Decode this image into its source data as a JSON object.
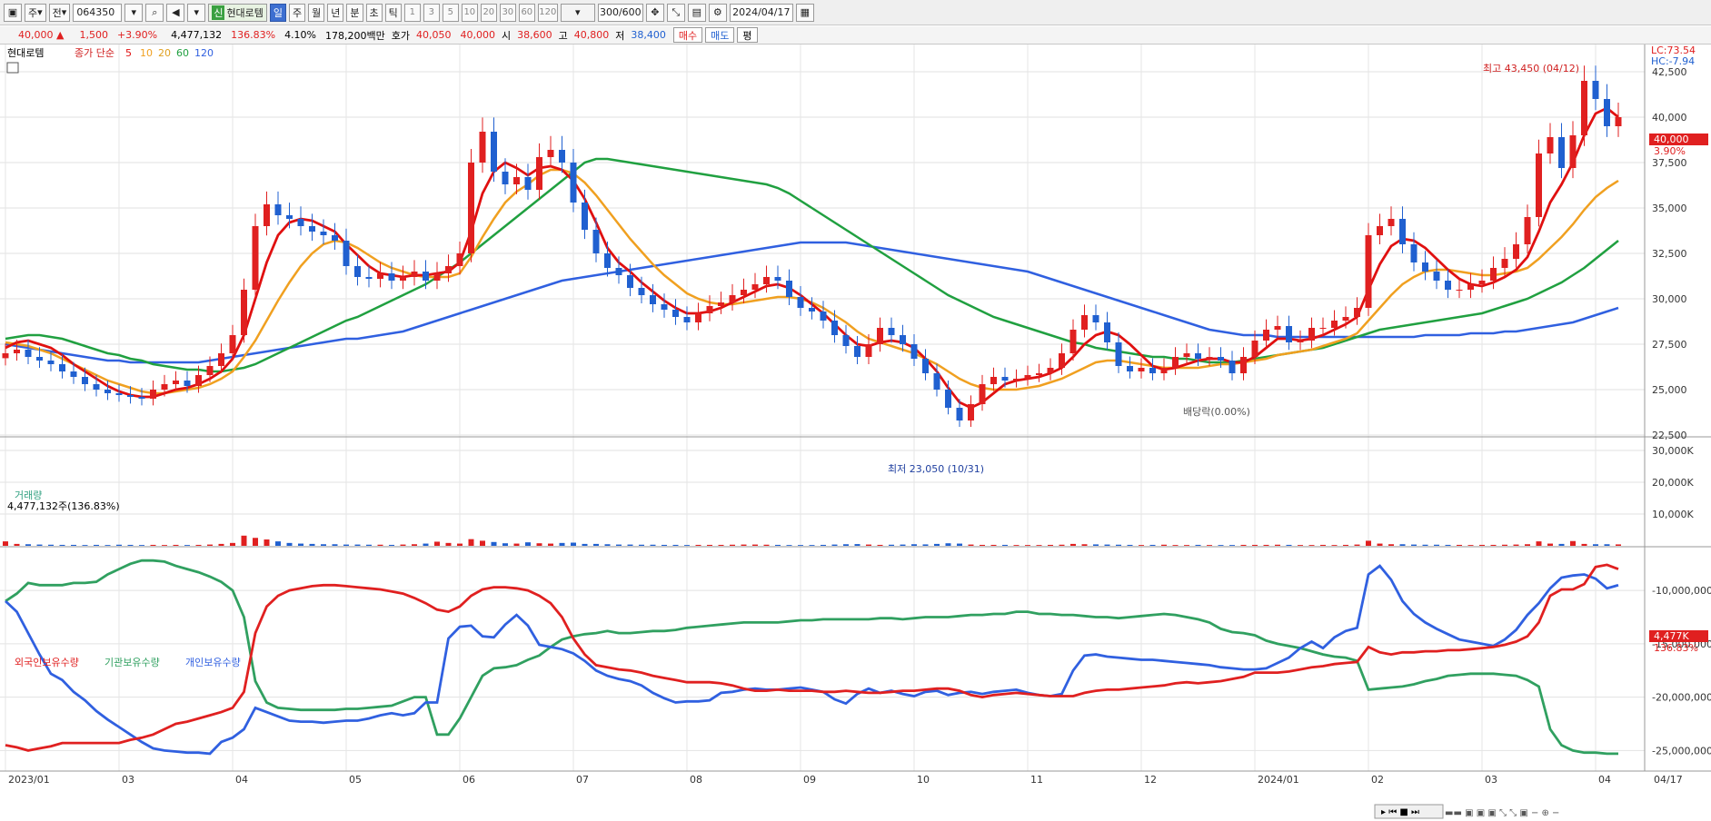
{
  "toolbar": {
    "period": "주",
    "market": "전",
    "code": "064350",
    "badge": "신",
    "name": "현대로템",
    "tabs": [
      "일",
      "주",
      "월",
      "년",
      "분",
      "초",
      "틱"
    ],
    "nums": [
      "1",
      "3",
      "5",
      "10",
      "20",
      "30",
      "60",
      "120"
    ],
    "count": "300/600",
    "date": "2024/04/17"
  },
  "info": {
    "price": "40,000 ▲",
    "chg": "1,500",
    "pct": "+3.90%",
    "vol": "4,477,132",
    "volpct": "136.83%",
    "turn": "4.10%",
    "amount": "178,200백만",
    "bid_label": "호가",
    "bid1": "40,050",
    "bid2": "40,000",
    "open_label": "시",
    "open": "38,600",
    "high_label": "고",
    "high": "40,800",
    "low_label": "저",
    "low": "38,400",
    "buy": "매수",
    "sell": "매도",
    "eval": "평"
  },
  "legend": {
    "stock": "현대로템",
    "type": "종가 단순",
    "ma": [
      "5",
      "10",
      "20",
      "60",
      "120"
    ],
    "colors": {
      "price_up": "#e02020",
      "price_down": "#2060d0",
      "ma5": "#e01010",
      "ma10": "#f0a020",
      "ma20": "#f0a020",
      "ma60": "#20a040",
      "ma120": "#3060e0"
    }
  },
  "annot": {
    "lc": "LC:73.54",
    "hc": "HC:-7.94",
    "high": "최고 43,450 (04/12)",
    "low": "최저 23,050 (10/31)",
    "div": "배당락(0.00%)",
    "last": "40,000",
    "lastpct": "3.90%"
  },
  "vol_panel": {
    "title": "거래량",
    "value": "4,477,132주(136.83%)",
    "last": "4,477K",
    "lastpct": "136.83%",
    "ticks": [
      "30,000K",
      "20,000K",
      "10,000K"
    ]
  },
  "hold_panel": {
    "labels": [
      "외국인보유수량",
      "기관보유수량",
      "개인보유수량"
    ],
    "colors": [
      "#e02020",
      "#30a060",
      "#3060e0"
    ],
    "ticks": [
      "-10,000,000",
      "-15,000,000",
      "-20,000,000",
      "-25,000,000"
    ]
  },
  "chart_data": {
    "type": "candlestick",
    "ylim": [
      22500,
      44000
    ],
    "yticks": [
      "42,500",
      "40,000",
      "37,500",
      "35,000",
      "32,500",
      "30,000",
      "27,500",
      "25,000",
      "22,500"
    ],
    "months": [
      "2023/01",
      "03",
      "04",
      "05",
      "06",
      "07",
      "08",
      "09",
      "10",
      "11",
      "12",
      "2024/01",
      "02",
      "03",
      "04",
      "04/17"
    ],
    "close": [
      27000,
      27200,
      26800,
      26600,
      26400,
      26000,
      25700,
      25300,
      25000,
      24800,
      24700,
      24600,
      24500,
      25000,
      25300,
      25500,
      25200,
      25800,
      26300,
      27000,
      28000,
      30500,
      34000,
      35200,
      34600,
      34400,
      34000,
      33700,
      33500,
      33200,
      31800,
      31200,
      31100,
      31400,
      31000,
      31200,
      31500,
      31000,
      31400,
      31800,
      32500,
      37500,
      39200,
      37000,
      36300,
      36700,
      36000,
      37800,
      38200,
      37500,
      35300,
      33800,
      32500,
      31700,
      31300,
      30600,
      30200,
      29700,
      29400,
      29000,
      28700,
      29200,
      29600,
      29800,
      30200,
      30500,
      30800,
      31200,
      31000,
      30100,
      29500,
      29300,
      28800,
      28000,
      27400,
      26800,
      27500,
      28400,
      28000,
      27500,
      26700,
      25900,
      25000,
      24000,
      23300,
      24200,
      25300,
      25700,
      25500,
      25600,
      25800,
      25900,
      26200,
      27000,
      28300,
      29100,
      28700,
      27600,
      26300,
      26000,
      26200,
      25900,
      26200,
      26800,
      27000,
      26700,
      26800,
      26600,
      25900,
      26800,
      27700,
      28300,
      28500,
      27600,
      27700,
      28400,
      28400,
      28800,
      29000,
      29500,
      33500,
      34000,
      34400,
      33000,
      32000,
      31500,
      31000,
      30500,
      30500,
      30800,
      31000,
      31700,
      32200,
      33000,
      34500,
      38000,
      38900,
      37200,
      39000,
      42000,
      41000,
      39500,
      40000
    ],
    "ma5": [
      27300,
      27600,
      27700,
      27500,
      27300,
      26900,
      26400,
      26000,
      25600,
      25200,
      24900,
      24700,
      24600,
      24600,
      24800,
      25000,
      25100,
      25300,
      25600,
      26000,
      26700,
      28000,
      30000,
      32000,
      33500,
      34200,
      34400,
      34300,
      34000,
      33700,
      33000,
      32400,
      31800,
      31400,
      31300,
      31200,
      31300,
      31300,
      31400,
      31500,
      32000,
      33700,
      35800,
      37000,
      37500,
      37200,
      36800,
      37200,
      37300,
      37100,
      36500,
      35500,
      34200,
      32800,
      32000,
      31500,
      30900,
      30400,
      29900,
      29500,
      29200,
      29200,
      29300,
      29500,
      29800,
      30100,
      30400,
      30700,
      30800,
      30600,
      30200,
      29700,
      29200,
      28600,
      28000,
      27500,
      27400,
      27600,
      27700,
      27600,
      27300,
      26700,
      26000,
      25100,
      24300,
      24000,
      24300,
      24800,
      25300,
      25500,
      25600,
      25700,
      25900,
      26200,
      26800,
      27500,
      28000,
      28200,
      28000,
      27500,
      26900,
      26300,
      26100,
      26200,
      26400,
      26600,
      26700,
      26700,
      26500,
      26500,
      26800,
      27300,
      27800,
      27800,
      27700,
      27800,
      28000,
      28300,
      28600,
      29000,
      30500,
      31900,
      32900,
      33300,
      33200,
      32800,
      32200,
      31600,
      31100,
      30800,
      30700,
      30900,
      31200,
      31600,
      32300,
      33700,
      35300,
      36300,
      37500,
      39000,
      40200,
      40500,
      40000
    ],
    "ma20": [
      27600,
      27500,
      27400,
      27200,
      27000,
      26700,
      26400,
      26100,
      25800,
      25500,
      25300,
      25100,
      24900,
      24800,
      24800,
      24900,
      25000,
      25100,
      25300,
      25600,
      26000,
      26800,
      27700,
      28800,
      29900,
      30900,
      31800,
      32500,
      33000,
      33200,
      33100,
      32800,
      32400,
      32000,
      31700,
      31500,
      31300,
      31200,
      31200,
      31200,
      31400,
      32300,
      33400,
      34400,
      35300,
      35900,
      36300,
      36800,
      37100,
      37100,
      36900,
      36400,
      35700,
      34900,
      34100,
      33300,
      32600,
      31900,
      31300,
      30800,
      30300,
      30000,
      29800,
      29700,
      29700,
      29800,
      29900,
      30000,
      30100,
      30100,
      30000,
      29800,
      29500,
      29100,
      28700,
      28200,
      27800,
      27600,
      27400,
      27200,
      27000,
      26700,
      26400,
      26000,
      25600,
      25300,
      25100,
      25000,
      25000,
      25000,
      25100,
      25200,
      25400,
      25600,
      25900,
      26200,
      26500,
      26600,
      26600,
      26500,
      26400,
      26300,
      26200,
      26200,
      26200,
      26200,
      26300,
      26400,
      26400,
      26500,
      26600,
      26700,
      26900,
      27000,
      27100,
      27200,
      27400,
      27600,
      27800,
      28100,
      28800,
      29500,
      30200,
      30800,
      31200,
      31500,
      31600,
      31600,
      31500,
      31400,
      31300,
      31300,
      31400,
      31500,
      31700,
      32200,
      32800,
      33400,
      34100,
      34900,
      35600,
      36100,
      36500
    ],
    "ma60": [
      27800,
      27900,
      28000,
      28000,
      27900,
      27800,
      27600,
      27400,
      27200,
      27000,
      26900,
      26700,
      26600,
      26400,
      26300,
      26200,
      26100,
      26100,
      26000,
      26000,
      26100,
      26200,
      26400,
      26700,
      27000,
      27300,
      27600,
      27900,
      28200,
      28500,
      28800,
      29000,
      29300,
      29600,
      29900,
      30200,
      30500,
      30800,
      31200,
      31600,
      32000,
      32500,
      33000,
      33500,
      34000,
      34500,
      35000,
      35500,
      36000,
      36500,
      37000,
      37500,
      37700,
      37700,
      37600,
      37500,
      37400,
      37300,
      37200,
      37100,
      37000,
      36900,
      36800,
      36700,
      36600,
      36500,
      36400,
      36300,
      36100,
      35800,
      35400,
      35000,
      34600,
      34200,
      33800,
      33400,
      33000,
      32600,
      32200,
      31800,
      31400,
      31000,
      30600,
      30200,
      29900,
      29600,
      29300,
      29000,
      28800,
      28600,
      28400,
      28200,
      28000,
      27800,
      27600,
      27500,
      27300,
      27200,
      27100,
      27000,
      26900,
      26800,
      26800,
      26700,
      26700,
      26600,
      26500,
      26500,
      26500,
      26600,
      26700,
      26800,
      26900,
      27000,
      27100,
      27200,
      27300,
      27500,
      27700,
      27900,
      28100,
      28300,
      28400,
      28500,
      28600,
      28700,
      28800,
      28900,
      29000,
      29100,
      29200,
      29400,
      29600,
      29800,
      30000,
      30300,
      30600,
      30900,
      31300,
      31700,
      32200,
      32700,
      33200
    ],
    "ma120": [
      27500,
      27400,
      27300,
      27200,
      27100,
      27000,
      26900,
      26800,
      26700,
      26600,
      26600,
      26500,
      26500,
      26500,
      26500,
      26500,
      26500,
      26500,
      26600,
      26700,
      26800,
      26900,
      27000,
      27100,
      27200,
      27300,
      27400,
      27500,
      27600,
      27700,
      27800,
      27800,
      27900,
      28000,
      28100,
      28200,
      28400,
      28600,
      28800,
      29000,
      29200,
      29400,
      29600,
      29800,
      30000,
      30200,
      30400,
      30600,
      30800,
      31000,
      31100,
      31200,
      31300,
      31400,
      31500,
      31600,
      31700,
      31800,
      31900,
      32000,
      32100,
      32200,
      32300,
      32400,
      32500,
      32600,
      32700,
      32800,
      32900,
      33000,
      33100,
      33100,
      33100,
      33100,
      33100,
      33000,
      32900,
      32800,
      32700,
      32600,
      32500,
      32400,
      32300,
      32200,
      32100,
      32000,
      31900,
      31800,
      31700,
      31600,
      31500,
      31300,
      31100,
      30900,
      30700,
      30500,
      30300,
      30100,
      29900,
      29700,
      29500,
      29300,
      29100,
      28900,
      28700,
      28500,
      28300,
      28200,
      28100,
      28000,
      28000,
      28000,
      27900,
      27900,
      27900,
      27900,
      27900,
      27900,
      27900,
      27900,
      27900,
      27900,
      27900,
      27900,
      27900,
      28000,
      28000,
      28000,
      28000,
      28100,
      28100,
      28100,
      28200,
      28200,
      28300,
      28400,
      28500,
      28600,
      28700,
      28900,
      29100,
      29300,
      29500
    ],
    "volume": [
      1400,
      600,
      500,
      400,
      350,
      300,
      300,
      250,
      300,
      250,
      350,
      300,
      250,
      300,
      250,
      300,
      250,
      300,
      400,
      600,
      900,
      3200,
      2500,
      2000,
      1400,
      900,
      700,
      600,
      500,
      500,
      400,
      400,
      350,
      350,
      300,
      400,
      500,
      700,
      1300,
      900,
      700,
      2100,
      1600,
      1200,
      800,
      700,
      1100,
      800,
      700,
      900,
      1000,
      600,
      600,
      500,
      400,
      400,
      350,
      350,
      300,
      300,
      250,
      300,
      300,
      300,
      350,
      400,
      400,
      350,
      300,
      250,
      250,
      250,
      300,
      400,
      500,
      550,
      400,
      300,
      350,
      400,
      500,
      450,
      600,
      800,
      700,
      400,
      300,
      300,
      300,
      250,
      250,
      250,
      300,
      350,
      600,
      500,
      450,
      400,
      350,
      300,
      250,
      300,
      350,
      250,
      250,
      300,
      250,
      250,
      250,
      300,
      300,
      300,
      350,
      300,
      250,
      250,
      300,
      250,
      300,
      400,
      1600,
      700,
      500,
      500,
      400,
      350,
      350,
      300,
      300,
      250,
      300,
      300,
      350,
      400,
      500,
      1400,
      700,
      600,
      1500,
      600,
      500,
      500,
      450
    ],
    "foreign": [
      -24500,
      -24700,
      -25000,
      -24800,
      -24600,
      -24300,
      -24300,
      -24300,
      -24300,
      -24300,
      -24300,
      -24000,
      -23800,
      -23500,
      -23000,
      -22500,
      -22300,
      -22000,
      -21700,
      -21400,
      -21000,
      -19500,
      -14000,
      -11500,
      -10500,
      -10000,
      -9800,
      -9600,
      -9500,
      -9500,
      -9600,
      -9700,
      -9800,
      -9900,
      -10100,
      -10300,
      -10700,
      -11200,
      -11800,
      -12000,
      -11500,
      -10500,
      -9900,
      -9700,
      -9700,
      -9800,
      -10000,
      -10500,
      -11200,
      -12500,
      -14500,
      -16000,
      -17000,
      -17200,
      -17400,
      -17500,
      -17700,
      -18000,
      -18200,
      -18400,
      -18600,
      -18600,
      -18600,
      -18700,
      -18900,
      -19200,
      -19400,
      -19400,
      -19300,
      -19400,
      -19400,
      -19400,
      -19500,
      -19500,
      -19400,
      -19500,
      -19600,
      -19600,
      -19500,
      -19400,
      -19400,
      -19300,
      -19200,
      -19200,
      -19400,
      -19800,
      -20000,
      -19800,
      -19700,
      -19600,
      -19700,
      -19800,
      -19900,
      -19900,
      -19900,
      -19600,
      -19400,
      -19300,
      -19300,
      -19200,
      -19100,
      -19000,
      -18900,
      -18700,
      -18600,
      -18700,
      -18600,
      -18500,
      -18300,
      -18100,
      -17700,
      -17700,
      -17700,
      -17600,
      -17400,
      -17200,
      -17100,
      -16900,
      -16800,
      -16700,
      -15300,
      -15800,
      -16000,
      -15800,
      -15800,
      -15700,
      -15700,
      -15600,
      -15600,
      -15500,
      -15400,
      -15300,
      -15100,
      -14800,
      -14300,
      -13000,
      -10500,
      -9900,
      -9900,
      -9400,
      -7800,
      -7600,
      -8000
    ],
    "institution": [
      -11000,
      -10300,
      -9300,
      -9500,
      -9500,
      -9500,
      -9300,
      -9300,
      -9200,
      -8500,
      -8000,
      -7500,
      -7200,
      -7200,
      -7300,
      -7700,
      -8000,
      -8300,
      -8700,
      -9200,
      -10000,
      -12500,
      -18500,
      -20500,
      -21000,
      -21100,
      -21200,
      -21200,
      -21200,
      -21200,
      -21100,
      -21100,
      -21000,
      -20900,
      -20800,
      -20400,
      -20000,
      -20000,
      -23500,
      -23500,
      -22000,
      -20000,
      -18000,
      -17300,
      -17200,
      -17000,
      -16500,
      -16100,
      -15300,
      -14600,
      -14300,
      -14100,
      -14000,
      -13800,
      -14000,
      -14000,
      -13900,
      -13800,
      -13800,
      -13700,
      -13500,
      -13400,
      -13300,
      -13200,
      -13100,
      -13000,
      -13000,
      -13000,
      -13000,
      -12900,
      -12800,
      -12800,
      -12700,
      -12700,
      -12700,
      -12700,
      -12700,
      -12600,
      -12600,
      -12700,
      -12600,
      -12500,
      -12500,
      -12500,
      -12400,
      -12300,
      -12300,
      -12200,
      -12200,
      -12000,
      -12000,
      -12200,
      -12200,
      -12300,
      -12300,
      -12400,
      -12500,
      -12500,
      -12600,
      -12500,
      -12400,
      -12300,
      -12200,
      -12300,
      -12500,
      -12700,
      -13000,
      -13600,
      -13900,
      -14000,
      -14200,
      -14700,
      -15000,
      -15200,
      -15400,
      -15700,
      -16000,
      -16200,
      -16300,
      -16600,
      -19300,
      -19200,
      -19100,
      -19000,
      -18800,
      -18500,
      -18300,
      -18000,
      -17900,
      -17800,
      -17800,
      -17800,
      -17900,
      -18000,
      -18400,
      -19000,
      -23000,
      -24500,
      -25000,
      -25200,
      -25200,
      -25300,
      -25300
    ],
    "individual": [
      -11000,
      -12000,
      -14000,
      -16000,
      -17800,
      -18400,
      -19500,
      -20300,
      -21300,
      -22100,
      -22800,
      -23500,
      -24200,
      -24800,
      -25000,
      -25100,
      -25200,
      -25200,
      -25300,
      -24200,
      -23800,
      -23000,
      -21000,
      -21400,
      -21800,
      -22200,
      -22300,
      -22300,
      -22400,
      -22300,
      -22200,
      -22200,
      -22000,
      -21700,
      -21500,
      -21700,
      -21500,
      -20500,
      -20500,
      -14500,
      -13400,
      -13300,
      -14300,
      -14400,
      -13200,
      -12300,
      -13300,
      -15100,
      -15300,
      -15500,
      -15900,
      -16600,
      -17500,
      -18000,
      -18300,
      -18500,
      -18900,
      -19600,
      -20100,
      -20500,
      -20400,
      -20400,
      -20300,
      -19600,
      -19500,
      -19300,
      -19200,
      -19300,
      -19300,
      -19200,
      -19100,
      -19300,
      -19500,
      -20200,
      -20600,
      -19700,
      -19200,
      -19600,
      -19400,
      -19700,
      -19900,
      -19500,
      -19400,
      -19800,
      -19600,
      -19500,
      -19700,
      -19500,
      -19400,
      -19300,
      -19600,
      -19800,
      -19900,
      -19700,
      -17500,
      -16100,
      -16000,
      -16200,
      -16300,
      -16400,
      -16500,
      -16500,
      -16600,
      -16700,
      -16800,
      -16900,
      -17000,
      -17200,
      -17300,
      -17400,
      -17400,
      -17300,
      -16800,
      -16300,
      -15400,
      -14800,
      -15400,
      -14400,
      -13800,
      -13500,
      -8500,
      -7700,
      -9000,
      -11000,
      -12200,
      -13000,
      -13600,
      -14100,
      -14600,
      -14800,
      -15000,
      -15200,
      -14600,
      -13700,
      -12300,
      -11200,
      -9800,
      -8800,
      -8600,
      -8500,
      -8900,
      -9800,
      -9500
    ]
  }
}
